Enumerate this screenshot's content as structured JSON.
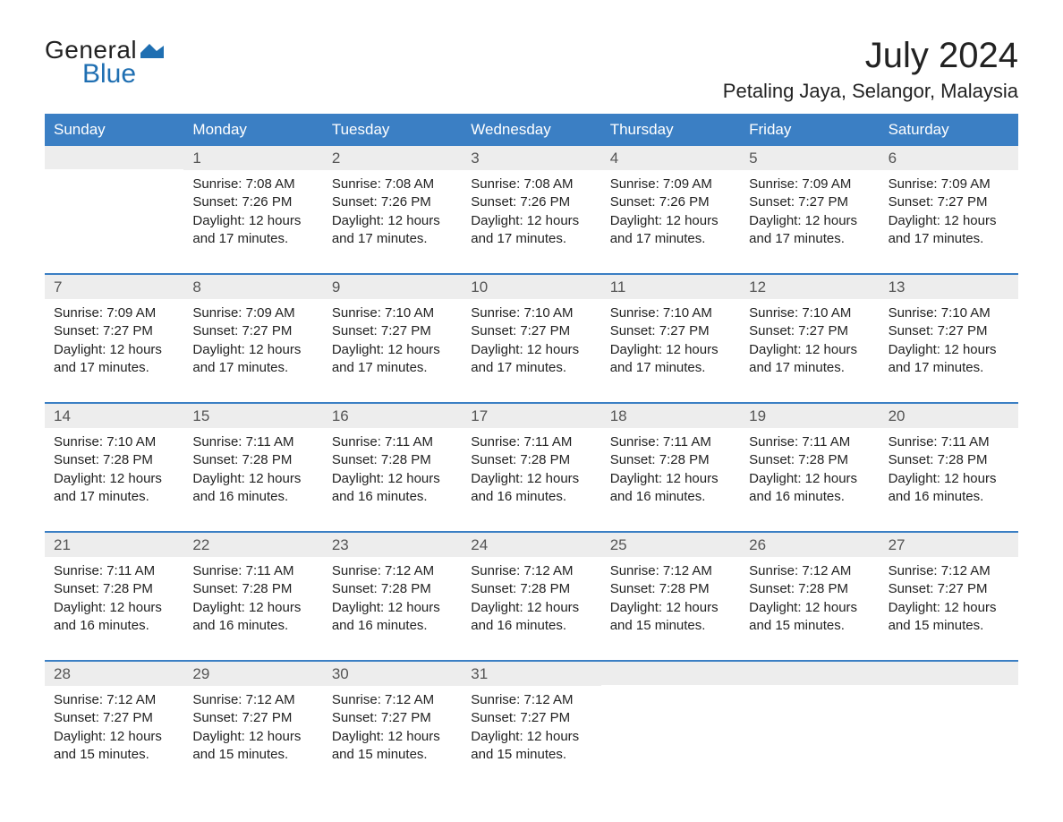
{
  "logo": {
    "top": "General",
    "bottom": "Blue"
  },
  "title": "July 2024",
  "location": "Petaling Jaya, Selangor, Malaysia",
  "colors": {
    "header_bg": "#3b7fc4",
    "header_text": "#ffffff",
    "daynum_bg": "#ededed",
    "daynum_text": "#555555",
    "body_text": "#222222",
    "week_border": "#3b7fc4",
    "page_bg": "#ffffff",
    "logo_blue": "#1f6fb2"
  },
  "fonts": {
    "title_size_pt": 30,
    "location_size_pt": 16,
    "header_size_pt": 13,
    "daynum_size_pt": 13,
    "body_size_pt": 11
  },
  "day_names": [
    "Sunday",
    "Monday",
    "Tuesday",
    "Wednesday",
    "Thursday",
    "Friday",
    "Saturday"
  ],
  "weeks": [
    [
      {
        "day": "",
        "sunrise": "",
        "sunset": "",
        "daylight": ""
      },
      {
        "day": "1",
        "sunrise": "Sunrise: 7:08 AM",
        "sunset": "Sunset: 7:26 PM",
        "daylight": "Daylight: 12 hours and 17 minutes."
      },
      {
        "day": "2",
        "sunrise": "Sunrise: 7:08 AM",
        "sunset": "Sunset: 7:26 PM",
        "daylight": "Daylight: 12 hours and 17 minutes."
      },
      {
        "day": "3",
        "sunrise": "Sunrise: 7:08 AM",
        "sunset": "Sunset: 7:26 PM",
        "daylight": "Daylight: 12 hours and 17 minutes."
      },
      {
        "day": "4",
        "sunrise": "Sunrise: 7:09 AM",
        "sunset": "Sunset: 7:26 PM",
        "daylight": "Daylight: 12 hours and 17 minutes."
      },
      {
        "day": "5",
        "sunrise": "Sunrise: 7:09 AM",
        "sunset": "Sunset: 7:27 PM",
        "daylight": "Daylight: 12 hours and 17 minutes."
      },
      {
        "day": "6",
        "sunrise": "Sunrise: 7:09 AM",
        "sunset": "Sunset: 7:27 PM",
        "daylight": "Daylight: 12 hours and 17 minutes."
      }
    ],
    [
      {
        "day": "7",
        "sunrise": "Sunrise: 7:09 AM",
        "sunset": "Sunset: 7:27 PM",
        "daylight": "Daylight: 12 hours and 17 minutes."
      },
      {
        "day": "8",
        "sunrise": "Sunrise: 7:09 AM",
        "sunset": "Sunset: 7:27 PM",
        "daylight": "Daylight: 12 hours and 17 minutes."
      },
      {
        "day": "9",
        "sunrise": "Sunrise: 7:10 AM",
        "sunset": "Sunset: 7:27 PM",
        "daylight": "Daylight: 12 hours and 17 minutes."
      },
      {
        "day": "10",
        "sunrise": "Sunrise: 7:10 AM",
        "sunset": "Sunset: 7:27 PM",
        "daylight": "Daylight: 12 hours and 17 minutes."
      },
      {
        "day": "11",
        "sunrise": "Sunrise: 7:10 AM",
        "sunset": "Sunset: 7:27 PM",
        "daylight": "Daylight: 12 hours and 17 minutes."
      },
      {
        "day": "12",
        "sunrise": "Sunrise: 7:10 AM",
        "sunset": "Sunset: 7:27 PM",
        "daylight": "Daylight: 12 hours and 17 minutes."
      },
      {
        "day": "13",
        "sunrise": "Sunrise: 7:10 AM",
        "sunset": "Sunset: 7:27 PM",
        "daylight": "Daylight: 12 hours and 17 minutes."
      }
    ],
    [
      {
        "day": "14",
        "sunrise": "Sunrise: 7:10 AM",
        "sunset": "Sunset: 7:28 PM",
        "daylight": "Daylight: 12 hours and 17 minutes."
      },
      {
        "day": "15",
        "sunrise": "Sunrise: 7:11 AM",
        "sunset": "Sunset: 7:28 PM",
        "daylight": "Daylight: 12 hours and 16 minutes."
      },
      {
        "day": "16",
        "sunrise": "Sunrise: 7:11 AM",
        "sunset": "Sunset: 7:28 PM",
        "daylight": "Daylight: 12 hours and 16 minutes."
      },
      {
        "day": "17",
        "sunrise": "Sunrise: 7:11 AM",
        "sunset": "Sunset: 7:28 PM",
        "daylight": "Daylight: 12 hours and 16 minutes."
      },
      {
        "day": "18",
        "sunrise": "Sunrise: 7:11 AM",
        "sunset": "Sunset: 7:28 PM",
        "daylight": "Daylight: 12 hours and 16 minutes."
      },
      {
        "day": "19",
        "sunrise": "Sunrise: 7:11 AM",
        "sunset": "Sunset: 7:28 PM",
        "daylight": "Daylight: 12 hours and 16 minutes."
      },
      {
        "day": "20",
        "sunrise": "Sunrise: 7:11 AM",
        "sunset": "Sunset: 7:28 PM",
        "daylight": "Daylight: 12 hours and 16 minutes."
      }
    ],
    [
      {
        "day": "21",
        "sunrise": "Sunrise: 7:11 AM",
        "sunset": "Sunset: 7:28 PM",
        "daylight": "Daylight: 12 hours and 16 minutes."
      },
      {
        "day": "22",
        "sunrise": "Sunrise: 7:11 AM",
        "sunset": "Sunset: 7:28 PM",
        "daylight": "Daylight: 12 hours and 16 minutes."
      },
      {
        "day": "23",
        "sunrise": "Sunrise: 7:12 AM",
        "sunset": "Sunset: 7:28 PM",
        "daylight": "Daylight: 12 hours and 16 minutes."
      },
      {
        "day": "24",
        "sunrise": "Sunrise: 7:12 AM",
        "sunset": "Sunset: 7:28 PM",
        "daylight": "Daylight: 12 hours and 16 minutes."
      },
      {
        "day": "25",
        "sunrise": "Sunrise: 7:12 AM",
        "sunset": "Sunset: 7:28 PM",
        "daylight": "Daylight: 12 hours and 15 minutes."
      },
      {
        "day": "26",
        "sunrise": "Sunrise: 7:12 AM",
        "sunset": "Sunset: 7:28 PM",
        "daylight": "Daylight: 12 hours and 15 minutes."
      },
      {
        "day": "27",
        "sunrise": "Sunrise: 7:12 AM",
        "sunset": "Sunset: 7:27 PM",
        "daylight": "Daylight: 12 hours and 15 minutes."
      }
    ],
    [
      {
        "day": "28",
        "sunrise": "Sunrise: 7:12 AM",
        "sunset": "Sunset: 7:27 PM",
        "daylight": "Daylight: 12 hours and 15 minutes."
      },
      {
        "day": "29",
        "sunrise": "Sunrise: 7:12 AM",
        "sunset": "Sunset: 7:27 PM",
        "daylight": "Daylight: 12 hours and 15 minutes."
      },
      {
        "day": "30",
        "sunrise": "Sunrise: 7:12 AM",
        "sunset": "Sunset: 7:27 PM",
        "daylight": "Daylight: 12 hours and 15 minutes."
      },
      {
        "day": "31",
        "sunrise": "Sunrise: 7:12 AM",
        "sunset": "Sunset: 7:27 PM",
        "daylight": "Daylight: 12 hours and 15 minutes."
      },
      {
        "day": "",
        "sunrise": "",
        "sunset": "",
        "daylight": ""
      },
      {
        "day": "",
        "sunrise": "",
        "sunset": "",
        "daylight": ""
      },
      {
        "day": "",
        "sunrise": "",
        "sunset": "",
        "daylight": ""
      }
    ]
  ]
}
